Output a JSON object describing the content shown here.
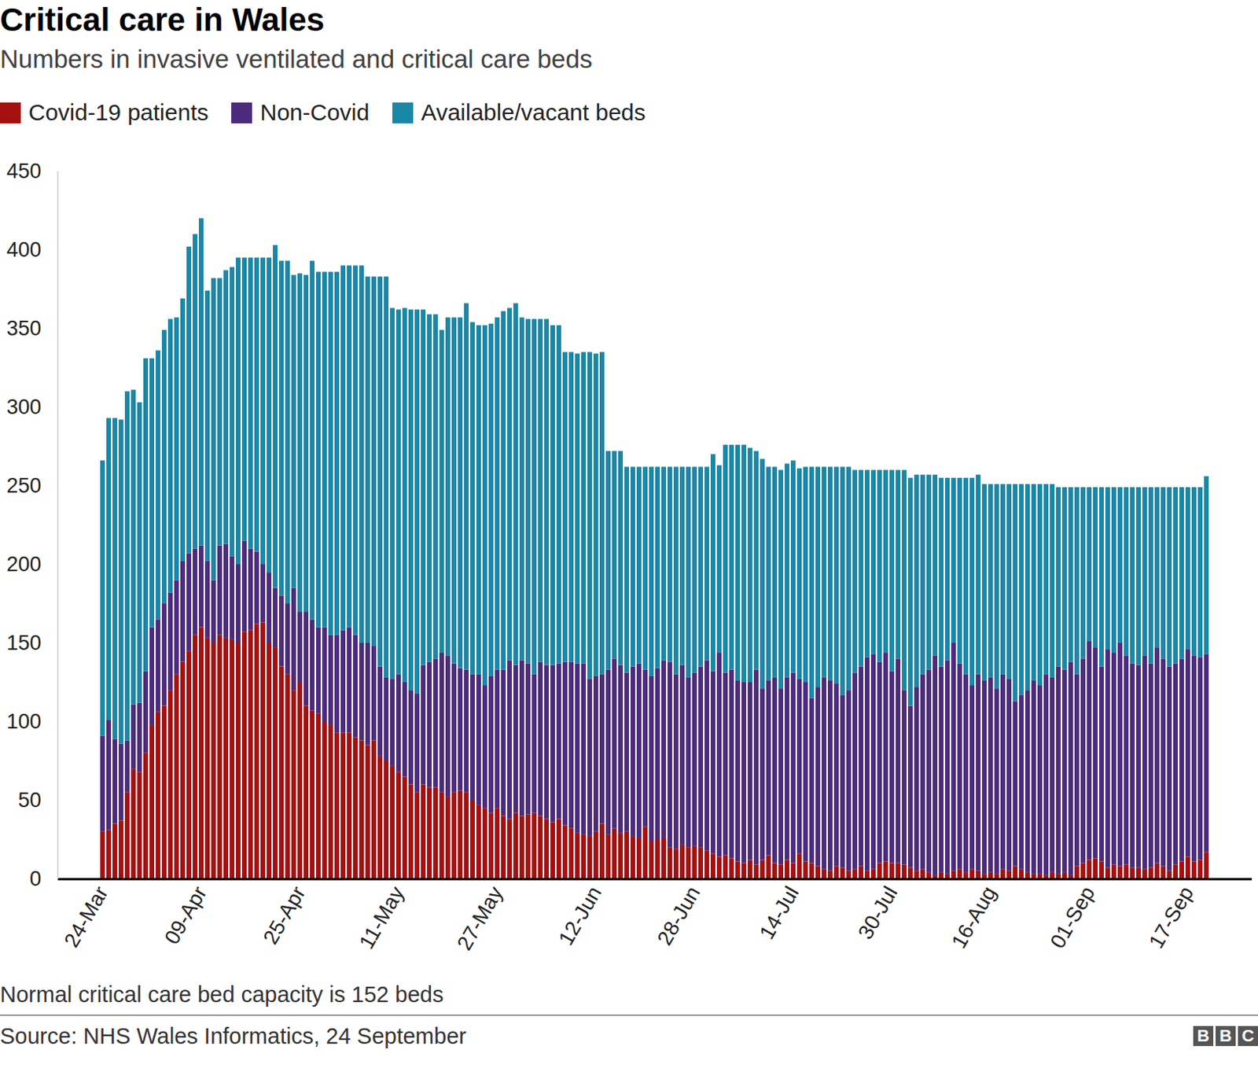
{
  "chart_data": {
    "type": "bar",
    "stacked": true,
    "title": "Critical care in Wales",
    "subtitle": "Numbers in invasive ventilated and critical care beds",
    "note": "Normal critical care bed capacity is 152 beds",
    "source": "Source: NHS Wales Informatics, 24 September",
    "logo": "BBC",
    "legend": "top-left",
    "grid": false,
    "ylim": [
      0,
      450
    ],
    "yticks": [
      0,
      50,
      100,
      150,
      200,
      250,
      300,
      350,
      400,
      450
    ],
    "categories": [
      "24-Mar",
      null,
      null,
      null,
      null,
      null,
      null,
      null,
      null,
      null,
      null,
      null,
      null,
      null,
      null,
      null,
      "09-Apr",
      null,
      null,
      null,
      null,
      null,
      null,
      null,
      null,
      null,
      null,
      null,
      null,
      null,
      null,
      null,
      "25-Apr",
      null,
      null,
      null,
      null,
      null,
      null,
      null,
      null,
      null,
      null,
      null,
      null,
      null,
      null,
      null,
      "11-May",
      null,
      null,
      null,
      null,
      null,
      null,
      null,
      null,
      null,
      null,
      null,
      null,
      null,
      null,
      null,
      "27-May",
      null,
      null,
      null,
      null,
      null,
      null,
      null,
      null,
      null,
      null,
      null,
      null,
      null,
      null,
      null,
      "12-Jun",
      null,
      null,
      null,
      null,
      null,
      null,
      null,
      null,
      null,
      null,
      null,
      null,
      null,
      null,
      null,
      "28-Jun",
      null,
      null,
      null,
      null,
      null,
      null,
      null,
      null,
      null,
      null,
      null,
      null,
      null,
      null,
      null,
      "14-Jul",
      null,
      null,
      null,
      null,
      null,
      null,
      null,
      null,
      null,
      null,
      null,
      null,
      null,
      null,
      null,
      "30-Jul",
      null,
      null,
      null,
      null,
      null,
      null,
      null,
      null,
      null,
      null,
      null,
      null,
      null,
      null,
      null,
      "16-Aug",
      null,
      null,
      null,
      null,
      null,
      null,
      null,
      null,
      null,
      null,
      null,
      null,
      null,
      null,
      null,
      "01-Sep",
      null,
      null,
      null,
      null,
      null,
      null,
      null,
      null,
      null,
      null,
      null,
      null,
      null,
      null,
      null,
      "17-Sep",
      null,
      null,
      null
    ],
    "series": [
      {
        "name": "Covid-19 patients",
        "color": "#a50f0f",
        "values": [
          30,
          31,
          35,
          37,
          55,
          70,
          68,
          80,
          98,
          106,
          110,
          120,
          130,
          138,
          145,
          155,
          160,
          153,
          150,
          155,
          153,
          152,
          150,
          157,
          158,
          162,
          163,
          150,
          147,
          135,
          130,
          120,
          125,
          110,
          107,
          105,
          100,
          98,
          93,
          93,
          93,
          90,
          88,
          85,
          88,
          78,
          75,
          72,
          68,
          65,
          60,
          55,
          60,
          58,
          58,
          55,
          52,
          55,
          56,
          55,
          50,
          47,
          45,
          42,
          45,
          40,
          38,
          42,
          40,
          41,
          42,
          40,
          38,
          36,
          38,
          34,
          32,
          29,
          28,
          27,
          30,
          35,
          28,
          32,
          29,
          30,
          27,
          26,
          33,
          24,
          25,
          26,
          20,
          19,
          22,
          20,
          21,
          20,
          18,
          16,
          14,
          15,
          13,
          11,
          10,
          12,
          9,
          12,
          15,
          10,
          9,
          12,
          10,
          16,
          11,
          10,
          8,
          6,
          5,
          8,
          7,
          5,
          6,
          8,
          5,
          6,
          10,
          11,
          10,
          10,
          9,
          7,
          5,
          6,
          4,
          2,
          4,
          3,
          5,
          6,
          4,
          6,
          5,
          3,
          4,
          3,
          6,
          5,
          8,
          6,
          4,
          3,
          3,
          2,
          4,
          3,
          4,
          2,
          8,
          10,
          12,
          13,
          11,
          7,
          9,
          8,
          9,
          7,
          7,
          6,
          7,
          10,
          8,
          5,
          9,
          11,
          14,
          11,
          12,
          17
        ]
      },
      {
        "name": "Non-Covid",
        "color": "#4d2b7c",
        "values": [
          61,
          70,
          54,
          49,
          33,
          41,
          44,
          52,
          62,
          59,
          65,
          62,
          60,
          64,
          62,
          55,
          52,
          49,
          40,
          57,
          60,
          53,
          50,
          58,
          52,
          46,
          37,
          45,
          38,
          45,
          45,
          65,
          45,
          60,
          58,
          55,
          60,
          57,
          62,
          65,
          67,
          65,
          62,
          65,
          60,
          57,
          53,
          55,
          62,
          60,
          60,
          63,
          76,
          80,
          82,
          89,
          90,
          82,
          78,
          78,
          80,
          83,
          78,
          87,
          88,
          93,
          101,
          94,
          99,
          96,
          88,
          98,
          98,
          100,
          99,
          104,
          106,
          108,
          109,
          100,
          99,
          95,
          105,
          108,
          107,
          101,
          108,
          111,
          100,
          105,
          109,
          113,
          118,
          111,
          114,
          108,
          110,
          115,
          121,
          116,
          130,
          116,
          120,
          115,
          115,
          113,
          124,
          109,
          111,
          118,
          112,
          116,
          121,
          111,
          114,
          105,
          114,
          122,
          121,
          116,
          110,
          115,
          125,
          127,
          136,
          137,
          128,
          133,
          122,
          130,
          111,
          103,
          117,
          124,
          129,
          140,
          131,
          136,
          145,
          131,
          126,
          117,
          125,
          123,
          124,
          118,
          124,
          122,
          105,
          111,
          116,
          123,
          120,
          128,
          124,
          132,
          129,
          136,
          122,
          130,
          139,
          134,
          124,
          139,
          135,
          142,
          133,
          130,
          129,
          136,
          130,
          137,
          132,
          130,
          128,
          129,
          132,
          131,
          129,
          126
        ]
      },
      {
        "name": "Available/vacant beds",
        "color": "#1b87a6",
        "values": [
          175,
          192,
          204,
          206,
          222,
          200,
          191,
          199,
          171,
          171,
          174,
          174,
          167,
          167,
          195,
          200,
          208,
          172,
          192,
          170,
          174,
          184,
          195,
          180,
          185,
          187,
          195,
          200,
          218,
          213,
          218,
          199,
          215,
          214,
          228,
          226,
          226,
          231,
          231,
          232,
          230,
          235,
          240,
          233,
          235,
          248,
          255,
          236,
          232,
          238,
          242,
          244,
          226,
          221,
          219,
          205,
          215,
          220,
          223,
          233,
          224,
          222,
          229,
          224,
          224,
          228,
          224,
          230,
          218,
          219,
          226,
          218,
          220,
          216,
          215,
          197,
          197,
          197,
          198,
          208,
          205,
          205,
          139,
          132,
          136,
          131,
          127,
          125,
          129,
          133,
          128,
          123,
          124,
          132,
          126,
          134,
          131,
          127,
          123,
          138,
          119,
          145,
          143,
          150,
          151,
          149,
          139,
          146,
          136,
          134,
          139,
          136,
          135,
          134,
          137,
          147,
          140,
          134,
          136,
          138,
          145,
          142,
          129,
          125,
          119,
          117,
          122,
          116,
          128,
          120,
          140,
          145,
          135,
          127,
          124,
          115,
          120,
          116,
          105,
          118,
          125,
          132,
          127,
          125,
          123,
          130,
          121,
          124,
          138,
          134,
          131,
          125,
          128,
          121,
          123,
          114,
          116,
          111,
          119,
          109,
          98,
          102,
          114,
          103,
          105,
          99,
          107,
          112,
          113,
          107,
          112,
          102,
          109,
          114,
          112,
          109,
          103,
          107,
          108,
          113
        ]
      }
    ]
  }
}
